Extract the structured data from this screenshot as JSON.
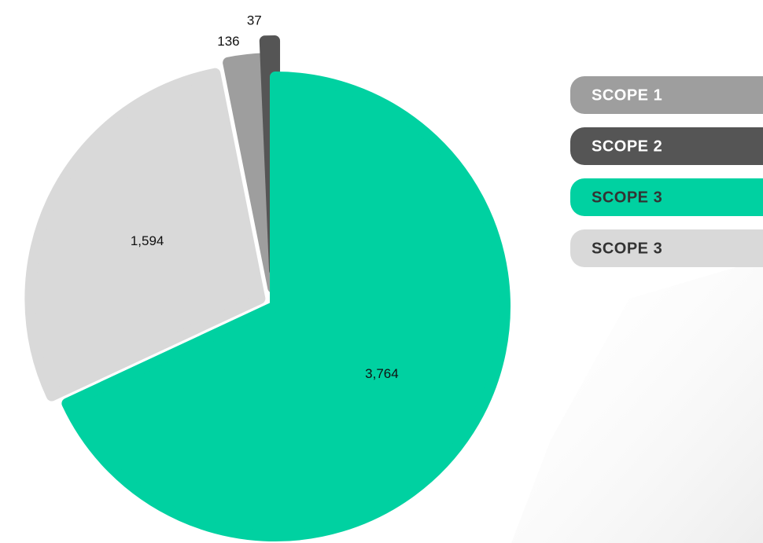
{
  "chart_data": {
    "type": "pie",
    "categories": [
      "SCOPE 1",
      "SCOPE 2",
      "SCOPE 3",
      "SCOPE 3"
    ],
    "values": [
      136,
      37,
      3764,
      1594
    ],
    "value_labels": [
      "136",
      "37",
      "3,764",
      "1,594"
    ],
    "colors": [
      "#9e9e9e",
      "#555555",
      "#00d1a1",
      "#d9d9d9"
    ],
    "legend": "right"
  }
}
